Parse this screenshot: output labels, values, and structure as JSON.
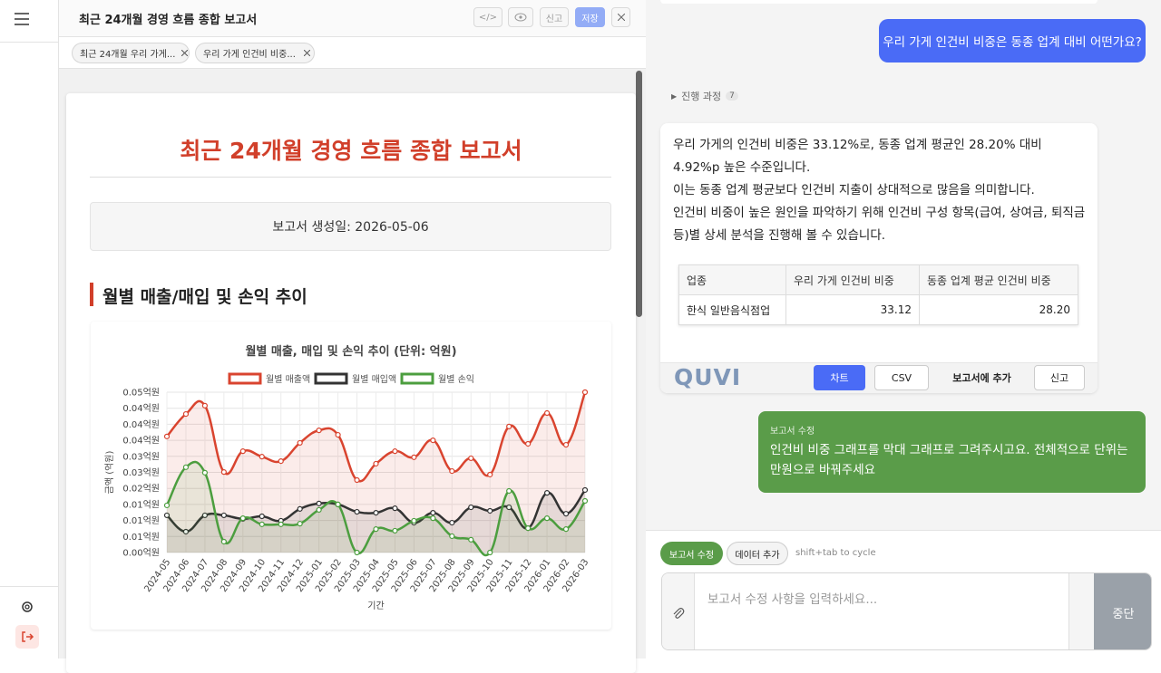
{
  "header": {
    "title": "최근 24개월 경영 흐름 종합 보고서",
    "code": "</>",
    "report": "신고",
    "save": "저장"
  },
  "tabs": [
    "최근 24개월 우리 가게...",
    "우리 가게 인건비 비중..."
  ],
  "report": {
    "title": "최근 24개월 경영 흐름 종합 보고서",
    "date": "보고서 생성일: 2026-05-06",
    "section": "월별 매출/매입 및 손익 추이"
  },
  "chart_data": {
    "type": "line",
    "title": "월별 매출, 매입 및 손익 추이 (단위: 억원)",
    "x_label": "기간",
    "y_label": "금액 (억원)",
    "categories": [
      "2024-05",
      "2024-06",
      "2024-07",
      "2024-08",
      "2024-09",
      "2024-10",
      "2024-11",
      "2024-12",
      "2025-01",
      "2025-02",
      "2025-03",
      "2025-04",
      "2025-05",
      "2025-06",
      "2025-07",
      "2025-08",
      "2025-09",
      "2025-10",
      "2025-11",
      "2025-12",
      "2026-01",
      "2026-02",
      "2026-03"
    ],
    "series": [
      {
        "name": "월별 매출액",
        "color": "#d9442f",
        "values": [
          0.0362,
          0.0432,
          0.0458,
          0.0251,
          0.0316,
          0.0299,
          0.0285,
          0.0342,
          0.0381,
          0.0367,
          0.0226,
          0.0277,
          0.0316,
          0.0297,
          0.035,
          0.0254,
          0.0294,
          0.0243,
          0.0393,
          0.0339,
          0.0435,
          0.0336,
          0.05
        ]
      },
      {
        "name": "월별 매입액",
        "color": "#333333",
        "values": [
          0.0116,
          0.0065,
          0.0116,
          0.0116,
          0.0105,
          0.0113,
          0.0099,
          0.0136,
          0.0153,
          0.015,
          0.0127,
          0.0124,
          0.0138,
          0.0093,
          0.0124,
          0.0093,
          0.0141,
          0.013,
          0.0141,
          0.0076,
          0.0186,
          0.0121,
          0.0195
        ]
      },
      {
        "name": "월별 손익",
        "color": "#4c9e3f",
        "values": [
          0.0147,
          0.0266,
          0.0249,
          0.0034,
          0.0107,
          0.0088,
          0.0088,
          0.009,
          0.0133,
          0.015,
          0,
          0.0073,
          0.0068,
          0.0099,
          0.0107,
          0.0051,
          0.004,
          0,
          0.0192,
          0.0076,
          0.0107,
          0.0073,
          0.0161
        ]
      }
    ],
    "ylim": [
      0,
      0.05
    ],
    "yticks": [
      {
        "value": 0,
        "label": "0.00억원"
      },
      {
        "value": 0.005,
        "label": "0.01억원"
      },
      {
        "value": 0.01,
        "label": "0.01억원"
      },
      {
        "value": 0.015,
        "label": "0.01억원"
      },
      {
        "value": 0.02,
        "label": "0.02억원"
      },
      {
        "value": 0.025,
        "label": "0.03억원"
      },
      {
        "value": 0.03,
        "label": "0.03억원"
      },
      {
        "value": 0.035,
        "label": "0.04억원"
      },
      {
        "value": 0.04,
        "label": "0.04억원"
      },
      {
        "value": 0.045,
        "label": "0.04억원"
      },
      {
        "value": 0.05,
        "label": "0.05억원"
      }
    ],
    "grid": true,
    "legend": "top"
  },
  "chat": {
    "question": "우리 가게 인건비 비중은 동종 업계 대비 어떤가요?",
    "progress": {
      "label": "진행 과정",
      "count": 7
    },
    "answer": [
      "우리 가게의 인건비 비중은 33.12%로, 동종 업계 평균인 28.20% 대비 4.92%p 높은 수준입니다.",
      "이는 동종 업계 평균보다 인건비 지출이 상대적으로 많음을 의미합니다.",
      "인건비 비중이 높은 원인을 파악하기 위해 인건비 구성 항목(급여, 상여금, 퇴직금 등)별 상세 분석을 진행해 볼 수 있습니다."
    ],
    "table": {
      "columns": [
        "업종",
        "우리 가게 인건비 비중",
        "동종 업계 평균 인건비 비중"
      ],
      "rows": [
        [
          "한식 일반음식점업",
          "33.12",
          "28.20"
        ]
      ]
    },
    "logo": "QUVI",
    "actions": [
      "차트",
      "CSV",
      "보고서에 추가",
      "신고"
    ],
    "edit": {
      "label": "보고서 수정",
      "text": "인건비 비중 그래프를 막대 그래프로 그려주시고요. 전체적으로 단위는 만원으로 바꿔주세요"
    }
  },
  "input": {
    "modes": [
      "보고서 수정",
      "데이터 추가"
    ],
    "hint": "shift+tab to cycle",
    "placeholder": "보고서 수정 사항을 입력하세요...",
    "stop": "중단"
  }
}
